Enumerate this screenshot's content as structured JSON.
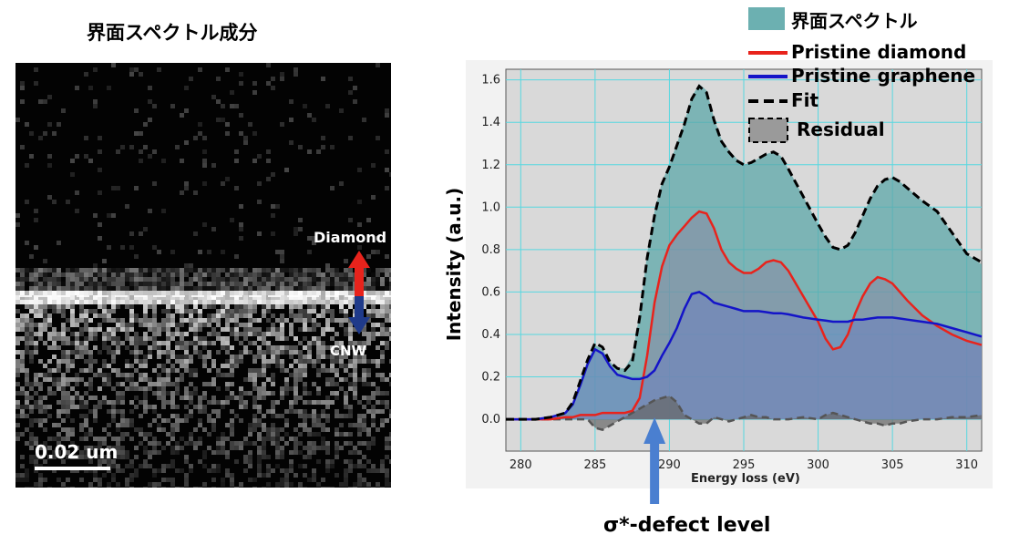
{
  "map": {
    "title": "界面スペクトル成分",
    "diamond_label": "Diamond",
    "cnw_label": "CNW",
    "scale_label": "0.02 um",
    "colors": {
      "up_arrow": "#e8231c",
      "down_arrow": "#1f3a8a",
      "background": "#030303"
    }
  },
  "annotation": {
    "label": "σ*-defect level",
    "x": 289,
    "color": "#4a7fd0"
  },
  "chart_data": {
    "type": "line",
    "xlabel": "Energy loss (eV)",
    "ylabel": "Intensity (a.u.)",
    "xlim": [
      279,
      311
    ],
    "ylim": [
      -0.15,
      1.65
    ],
    "x_ticks": [
      280,
      285,
      290,
      295,
      300,
      305,
      310
    ],
    "y_ticks": [
      "0.0",
      "0.2",
      "0.4",
      "0.6",
      "0.8",
      "1.0",
      "1.2",
      "1.4",
      "1.6"
    ],
    "grid": true,
    "legend_position": "top-right",
    "x": [
      279,
      281,
      282,
      283,
      283.5,
      284,
      284.5,
      285,
      285.5,
      286,
      286.5,
      287,
      287.5,
      288,
      288.5,
      289,
      289.5,
      290,
      290.5,
      291,
      291.5,
      292,
      292.5,
      293,
      293.5,
      294,
      294.5,
      295,
      295.5,
      296,
      296.5,
      297,
      297.5,
      298,
      299,
      300,
      300.5,
      301,
      301.5,
      302,
      302.5,
      303,
      303.5,
      304,
      304.5,
      305,
      305.5,
      306,
      307,
      308,
      309,
      310,
      311
    ],
    "series": [
      {
        "name": "界面スペクトル",
        "style": "filled-area",
        "color": "#5ca7a8",
        "values": [
          0,
          0,
          0.01,
          0.03,
          0.08,
          0.18,
          0.28,
          0.35,
          0.33,
          0.27,
          0.24,
          0.24,
          0.3,
          0.5,
          0.78,
          0.98,
          1.12,
          1.2,
          1.3,
          1.4,
          1.52,
          1.58,
          1.55,
          1.42,
          1.32,
          1.27,
          1.23,
          1.2,
          1.21,
          1.23,
          1.25,
          1.26,
          1.24,
          1.18,
          1.05,
          0.92,
          0.86,
          0.81,
          0.8,
          0.82,
          0.88,
          0.96,
          1.04,
          1.1,
          1.13,
          1.14,
          1.12,
          1.09,
          1.03,
          0.98,
          0.88,
          0.78,
          0.73
        ]
      },
      {
        "name": "Pristine diamond",
        "color": "#e8231c",
        "values": [
          0,
          0,
          0,
          0.01,
          0.01,
          0.02,
          0.02,
          0.02,
          0.03,
          0.03,
          0.03,
          0.03,
          0.04,
          0.1,
          0.3,
          0.55,
          0.72,
          0.82,
          0.87,
          0.91,
          0.95,
          0.98,
          0.97,
          0.9,
          0.8,
          0.74,
          0.71,
          0.69,
          0.69,
          0.71,
          0.74,
          0.75,
          0.74,
          0.7,
          0.58,
          0.46,
          0.38,
          0.33,
          0.34,
          0.4,
          0.5,
          0.58,
          0.64,
          0.67,
          0.66,
          0.64,
          0.6,
          0.56,
          0.49,
          0.44,
          0.4,
          0.37,
          0.35
        ]
      },
      {
        "name": "Pristine graphene",
        "color": "#1414c8",
        "values": [
          0,
          0,
          0.01,
          0.03,
          0.07,
          0.16,
          0.26,
          0.33,
          0.31,
          0.25,
          0.21,
          0.2,
          0.19,
          0.19,
          0.2,
          0.23,
          0.3,
          0.36,
          0.43,
          0.52,
          0.59,
          0.6,
          0.58,
          0.55,
          0.54,
          0.53,
          0.52,
          0.51,
          0.51,
          0.51,
          0.505,
          0.5,
          0.5,
          0.495,
          0.48,
          0.47,
          0.465,
          0.46,
          0.46,
          0.46,
          0.47,
          0.47,
          0.475,
          0.48,
          0.48,
          0.48,
          0.475,
          0.47,
          0.46,
          0.45,
          0.43,
          0.41,
          0.39
        ]
      },
      {
        "name": "Fit",
        "style": "dashed",
        "color": "#000000",
        "values": [
          0,
          0,
          0.01,
          0.03,
          0.08,
          0.18,
          0.28,
          0.36,
          0.34,
          0.27,
          0.24,
          0.23,
          0.27,
          0.48,
          0.76,
          0.96,
          1.11,
          1.19,
          1.29,
          1.39,
          1.51,
          1.57,
          1.54,
          1.41,
          1.31,
          1.26,
          1.22,
          1.2,
          1.21,
          1.23,
          1.25,
          1.26,
          1.24,
          1.18,
          1.05,
          0.92,
          0.86,
          0.81,
          0.8,
          0.82,
          0.88,
          0.96,
          1.04,
          1.1,
          1.13,
          1.14,
          1.12,
          1.09,
          1.03,
          0.98,
          0.88,
          0.78,
          0.74
        ]
      },
      {
        "name": "Residual",
        "style": "dashed-filled",
        "color": "#555555",
        "values": [
          0,
          0,
          0,
          0,
          0,
          0,
          0,
          -0.04,
          -0.05,
          -0.03,
          -0.01,
          0.01,
          0.03,
          0.05,
          0.07,
          0.09,
          0.1,
          0.11,
          0.08,
          0.02,
          0,
          -0.02,
          -0.02,
          0.01,
          0,
          -0.01,
          0,
          0.01,
          0.02,
          0.01,
          0.01,
          0,
          0,
          0,
          0.01,
          0,
          0.02,
          0.03,
          0.02,
          0.01,
          0,
          -0.01,
          -0.02,
          -0.02,
          -0.03,
          -0.02,
          -0.02,
          -0.01,
          0,
          0,
          0.01,
          0.01,
          0.02
        ]
      }
    ]
  }
}
